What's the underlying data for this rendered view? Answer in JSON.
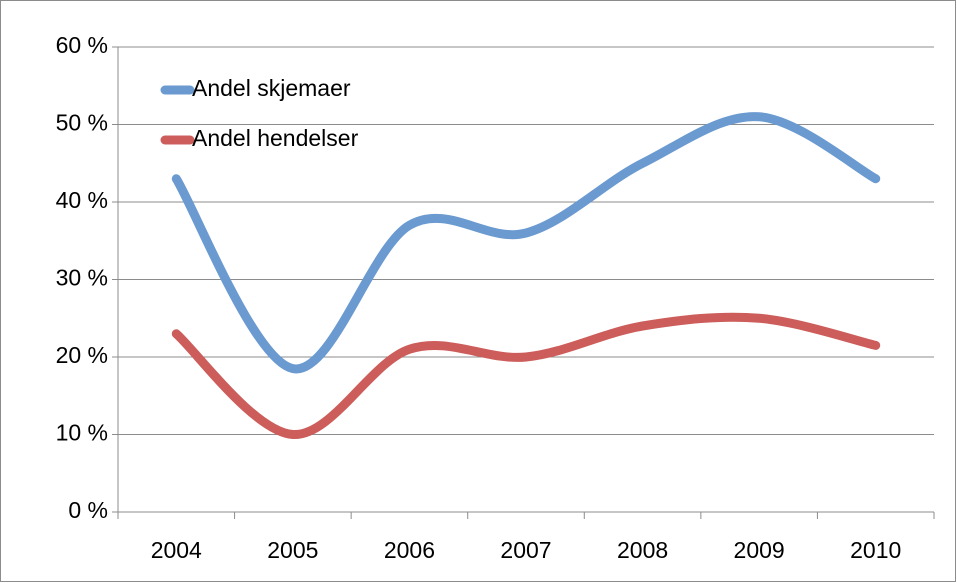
{
  "chart_data": {
    "type": "line",
    "categories": [
      "2004",
      "2005",
      "2006",
      "2007",
      "2008",
      "2009",
      "2010"
    ],
    "series": [
      {
        "name": "Andel skjemaer",
        "color": "#6a9ad0",
        "values": [
          43,
          18.5,
          37,
          36,
          45,
          51,
          43
        ]
      },
      {
        "name": "Andel hendelser",
        "color": "#cc5d5a",
        "values": [
          23,
          10,
          21,
          20,
          24,
          25,
          21.5
        ]
      }
    ],
    "ylim": [
      0,
      60
    ],
    "yticks": [
      {
        "value": 0,
        "label": "0 %"
      },
      {
        "value": 10,
        "label": "10 %"
      },
      {
        "value": 20,
        "label": "20 %"
      },
      {
        "value": 30,
        "label": "30 %"
      },
      {
        "value": 40,
        "label": "40 %"
      },
      {
        "value": 50,
        "label": "50 %"
      },
      {
        "value": 60,
        "label": "60 %"
      }
    ],
    "grid": true,
    "smooth": true,
    "legend": "top-left"
  }
}
